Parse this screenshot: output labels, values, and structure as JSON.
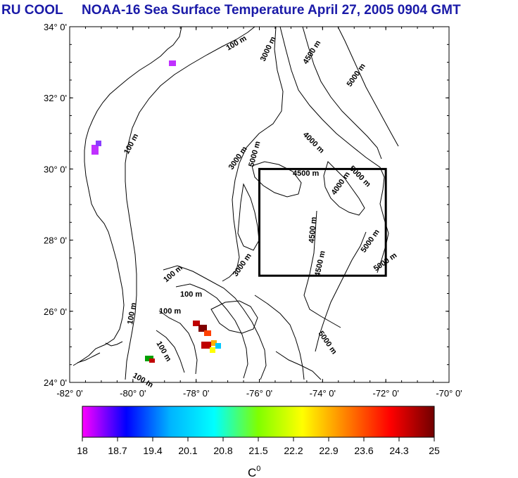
{
  "title": {
    "project": "RU COOL",
    "subject": "NOAA-16 Sea Surface Temperature April 27, 2005 0904 GMT"
  },
  "map": {
    "lat_labels": [
      "34° 0'",
      "32° 0'",
      "30° 0'",
      "28° 0'",
      "26° 0'",
      "24° 0'"
    ],
    "lon_labels": [
      "-82° 0'",
      "-80° 0'",
      "-78° 0'",
      "-76° 0'",
      "-74° 0'",
      "-72° 0'",
      "-70° 0'"
    ],
    "lat_range": [
      24,
      34
    ],
    "lon_range": [
      -82,
      -70
    ],
    "study_box": {
      "lon_min": -76,
      "lon_max": -72,
      "lat_min": 27,
      "lat_max": 30
    },
    "contour_labels": [
      "100 m",
      "100 m",
      "100 m",
      "100 m",
      "100 m",
      "100 m",
      "100 m",
      "100 m",
      "3000 m",
      "3000 m",
      "3000 m",
      "4500 m",
      "4500 m",
      "4500 m",
      "4500 m",
      "4000 m",
      "4000 m",
      "5000 m",
      "5000 m",
      "5000 m",
      "5000 m",
      "5000 m",
      "5000 m"
    ]
  },
  "colorbar": {
    "tick_labels": [
      "18",
      "18.7",
      "19.4",
      "20.1",
      "20.8",
      "21.5",
      "22.2",
      "22.9",
      "23.6",
      "24.3",
      "25"
    ],
    "unit_label": "C",
    "unit_superscript": "0",
    "range": [
      18,
      25
    ],
    "colors": [
      "#ff00ff",
      "#0000ff",
      "#00b4ff",
      "#00ffff",
      "#80ff00",
      "#ffff00",
      "#ff8000",
      "#ff0000",
      "#700000"
    ]
  },
  "colors": {
    "title": "#1a1aa8",
    "box": "#000000",
    "contour": "#000000"
  }
}
